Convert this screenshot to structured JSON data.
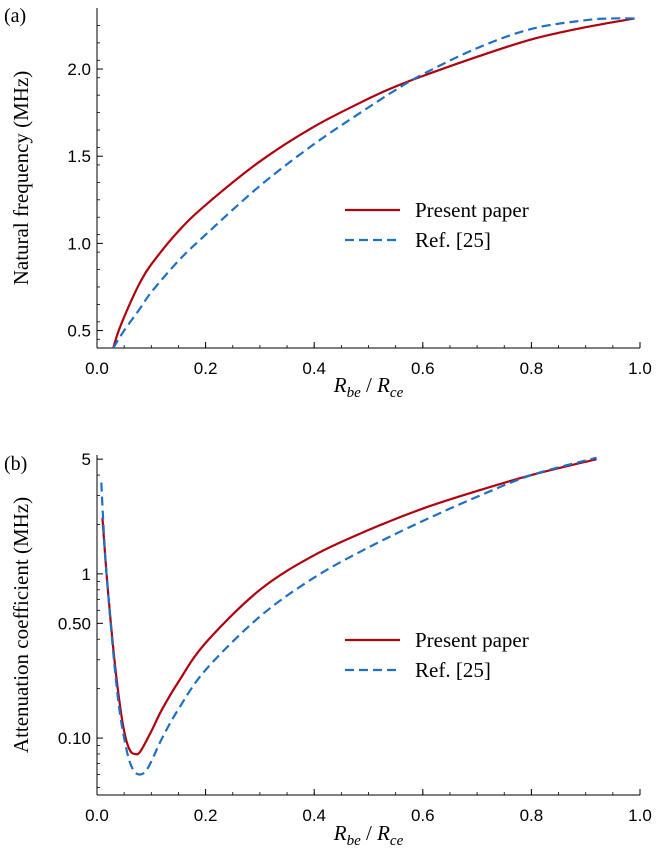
{
  "chart_data": [
    {
      "type": "line",
      "panel_label": "(a)",
      "xlabel": {
        "main1": "R",
        "sub1": "be",
        "sep": " / ",
        "main2": "R",
        "sub2": "ce"
      },
      "ylabel": "Natural frequency (MHz)",
      "xlim": [
        0.0,
        1.0
      ],
      "ylim": [
        0.4,
        2.35
      ],
      "yscale": "linear",
      "xticks": [
        "0.0",
        "0.2",
        "0.4",
        "0.6",
        "0.8",
        "1.0"
      ],
      "yticks": [
        "0.5",
        "1.0",
        "1.5",
        "2.0"
      ],
      "grid": false,
      "legend_position": "center-right",
      "series": [
        {
          "name": "Present paper",
          "color": "#b0000e",
          "style": "solid",
          "x": [
            0.03,
            0.04,
            0.06,
            0.08,
            0.1,
            0.15,
            0.2,
            0.3,
            0.4,
            0.5,
            0.55,
            0.6,
            0.7,
            0.8,
            0.9,
            0.99
          ],
          "y": [
            0.4,
            0.5,
            0.65,
            0.78,
            0.88,
            1.07,
            1.22,
            1.47,
            1.67,
            1.83,
            1.9,
            1.96,
            2.07,
            2.17,
            2.24,
            2.29
          ]
        },
        {
          "name": "Ref. [25]",
          "color": "#1f6fc5",
          "style": "dashed",
          "x": [
            0.03,
            0.05,
            0.08,
            0.1,
            0.15,
            0.2,
            0.3,
            0.4,
            0.5,
            0.55,
            0.6,
            0.7,
            0.8,
            0.9,
            0.95,
            0.99
          ],
          "y": [
            0.4,
            0.5,
            0.63,
            0.72,
            0.9,
            1.05,
            1.33,
            1.57,
            1.78,
            1.88,
            1.97,
            2.12,
            2.23,
            2.28,
            2.29,
            2.29
          ]
        }
      ]
    },
    {
      "type": "line",
      "panel_label": "(b)",
      "xlabel": {
        "main1": "R",
        "sub1": "be",
        "sep": " / ",
        "main2": "R",
        "sub2": "ce"
      },
      "ylabel": "Attenuation coefficient (MHz)",
      "xlim": [
        0.0,
        1.0
      ],
      "ylim": [
        0.045,
        5.3
      ],
      "yscale": "log",
      "xticks": [
        "0.0",
        "0.2",
        "0.4",
        "0.6",
        "0.8",
        "1.0"
      ],
      "yticks": [
        "0.10",
        "0.50",
        "1",
        "5"
      ],
      "grid": false,
      "legend_position": "center-right",
      "series": [
        {
          "name": "Present paper",
          "color": "#b0000e",
          "style": "solid",
          "x": [
            0.01,
            0.015,
            0.02,
            0.03,
            0.04,
            0.05,
            0.06,
            0.07,
            0.08,
            0.1,
            0.12,
            0.15,
            0.2,
            0.3,
            0.4,
            0.5,
            0.6,
            0.7,
            0.8,
            0.92
          ],
          "y": [
            2.2,
            1.3,
            0.8,
            0.35,
            0.18,
            0.11,
            0.085,
            0.08,
            0.083,
            0.11,
            0.15,
            0.22,
            0.38,
            0.8,
            1.3,
            1.85,
            2.5,
            3.2,
            4.0,
            5.0
          ]
        },
        {
          "name": "Ref. [25]",
          "color": "#1f6fc5",
          "style": "dashed",
          "x": [
            0.008,
            0.01,
            0.015,
            0.02,
            0.03,
            0.04,
            0.05,
            0.06,
            0.07,
            0.08,
            0.09,
            0.1,
            0.12,
            0.15,
            0.2,
            0.3,
            0.4,
            0.5,
            0.6,
            0.7,
            0.8,
            0.92
          ],
          "y": [
            3.6,
            2.6,
            1.3,
            0.8,
            0.33,
            0.16,
            0.1,
            0.072,
            0.062,
            0.06,
            0.063,
            0.072,
            0.1,
            0.15,
            0.26,
            0.55,
            0.95,
            1.45,
            2.1,
            2.95,
            4.0,
            5.1
          ]
        }
      ]
    }
  ]
}
